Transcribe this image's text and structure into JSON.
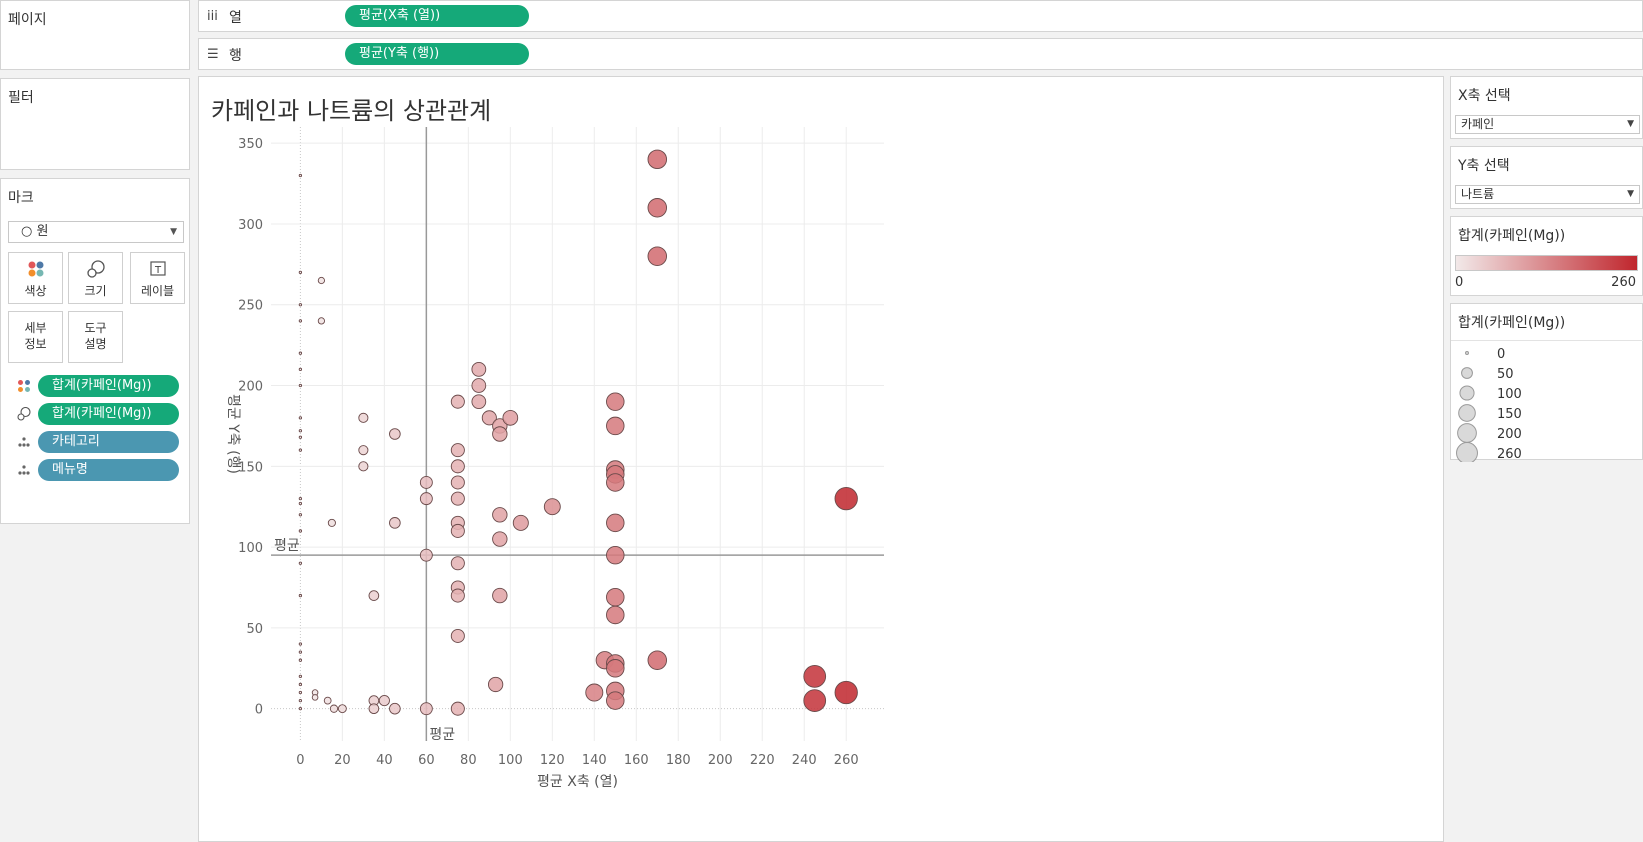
{
  "left_panel": {
    "pages_title": "페이지",
    "filters_title": "필터",
    "marks": {
      "title": "마크",
      "mark_type": "○ 원",
      "buttons": {
        "color": "색상",
        "size": "크기",
        "label": "레이블",
        "detail_l1": "세부",
        "detail_l2": "정보",
        "tooltip_l1": "도구",
        "tooltip_l2": "설명"
      },
      "fields": [
        {
          "icon": "color-icon",
          "label": "합계(카페인(Mg))",
          "color": "#15a979"
        },
        {
          "icon": "size-icon",
          "label": "합계(카페인(Mg))",
          "color": "#15a979"
        },
        {
          "icon": "detail-icon",
          "label": "카테고리",
          "color": "#4b97b1"
        },
        {
          "icon": "detail-icon",
          "label": "메뉴명",
          "color": "#4b97b1"
        }
      ]
    }
  },
  "shelves": {
    "columns": {
      "icon": "iii",
      "label": "열",
      "pill": "평균(X축 (열))"
    },
    "rows": {
      "icon": "☰",
      "label": "행",
      "pill": "평균(Y축 (행))"
    }
  },
  "right_panel": {
    "x_param": {
      "title": "X축 선택",
      "value": "카페인"
    },
    "y_param": {
      "title": "Y축 선택",
      "value": "나트륨"
    },
    "color_legend": {
      "title": "합계(카페인(Mg))",
      "min_label": "0",
      "max_label": "260",
      "low_color": "#f2e9e9",
      "high_color": "#c0262d"
    },
    "size_legend": {
      "title": "합계(카페인(Mg))",
      "labels": [
        "0",
        "50",
        "100",
        "150",
        "200",
        "260"
      ]
    }
  },
  "chart_data": {
    "type": "scatter",
    "title": "카페인과 나트륨의 상관관계",
    "xlabel": "평균 X축 (열)",
    "ylabel": "평균 Y축 (행)",
    "xlim": [
      -14,
      278
    ],
    "ylim": [
      -20,
      360
    ],
    "xticks": [
      0,
      20,
      40,
      60,
      80,
      100,
      120,
      140,
      160,
      180,
      200,
      220,
      240,
      260
    ],
    "yticks": [
      0,
      50,
      100,
      150,
      200,
      250,
      300,
      350
    ],
    "reference_lines": {
      "x": 60,
      "y": 95,
      "x_label": "평균",
      "y_label": "평균"
    },
    "grid": true,
    "points": [
      [
        0,
        330
      ],
      [
        0,
        270
      ],
      [
        0,
        250
      ],
      [
        0,
        240
      ],
      [
        0,
        220
      ],
      [
        0,
        210
      ],
      [
        0,
        200
      ],
      [
        0,
        180
      ],
      [
        0,
        172
      ],
      [
        0,
        168
      ],
      [
        0,
        160
      ],
      [
        0,
        130
      ],
      [
        0,
        127
      ],
      [
        0,
        120
      ],
      [
        0,
        110
      ],
      [
        0,
        90
      ],
      [
        0,
        70
      ],
      [
        0,
        40
      ],
      [
        0,
        35
      ],
      [
        0,
        30
      ],
      [
        0,
        20
      ],
      [
        0,
        15
      ],
      [
        0,
        10
      ],
      [
        0,
        5
      ],
      [
        0,
        0
      ],
      [
        7,
        10
      ],
      [
        7,
        7
      ],
      [
        10,
        265
      ],
      [
        10,
        240
      ],
      [
        13,
        5
      ],
      [
        15,
        115
      ],
      [
        16,
        0
      ],
      [
        20,
        0
      ],
      [
        30,
        180
      ],
      [
        30,
        160
      ],
      [
        30,
        150
      ],
      [
        35,
        70
      ],
      [
        35,
        5
      ],
      [
        35,
        0
      ],
      [
        40,
        5
      ],
      [
        45,
        170
      ],
      [
        45,
        115
      ],
      [
        45,
        0
      ],
      [
        60,
        140
      ],
      [
        60,
        130
      ],
      [
        60,
        95
      ],
      [
        60,
        0
      ],
      [
        75,
        190
      ],
      [
        75,
        160
      ],
      [
        75,
        150
      ],
      [
        75,
        140
      ],
      [
        75,
        130
      ],
      [
        75,
        115
      ],
      [
        75,
        110
      ],
      [
        75,
        90
      ],
      [
        75,
        75
      ],
      [
        75,
        70
      ],
      [
        75,
        45
      ],
      [
        75,
        0
      ],
      [
        85,
        210
      ],
      [
        85,
        200
      ],
      [
        85,
        190
      ],
      [
        90,
        180
      ],
      [
        93,
        15
      ],
      [
        95,
        175
      ],
      [
        95,
        170
      ],
      [
        95,
        120
      ],
      [
        95,
        105
      ],
      [
        95,
        70
      ],
      [
        100,
        180
      ],
      [
        105,
        115
      ],
      [
        120,
        125
      ],
      [
        140,
        10
      ],
      [
        145,
        30
      ],
      [
        150,
        190
      ],
      [
        150,
        175
      ],
      [
        150,
        148
      ],
      [
        150,
        145
      ],
      [
        150,
        140
      ],
      [
        150,
        115
      ],
      [
        150,
        95
      ],
      [
        150,
        69
      ],
      [
        150,
        58
      ],
      [
        150,
        28
      ],
      [
        150,
        25
      ],
      [
        150,
        11
      ],
      [
        150,
        5
      ],
      [
        170,
        340
      ],
      [
        170,
        310
      ],
      [
        170,
        280
      ],
      [
        170,
        30
      ],
      [
        245,
        20
      ],
      [
        245,
        5
      ],
      [
        260,
        130
      ],
      [
        260,
        10
      ]
    ]
  }
}
